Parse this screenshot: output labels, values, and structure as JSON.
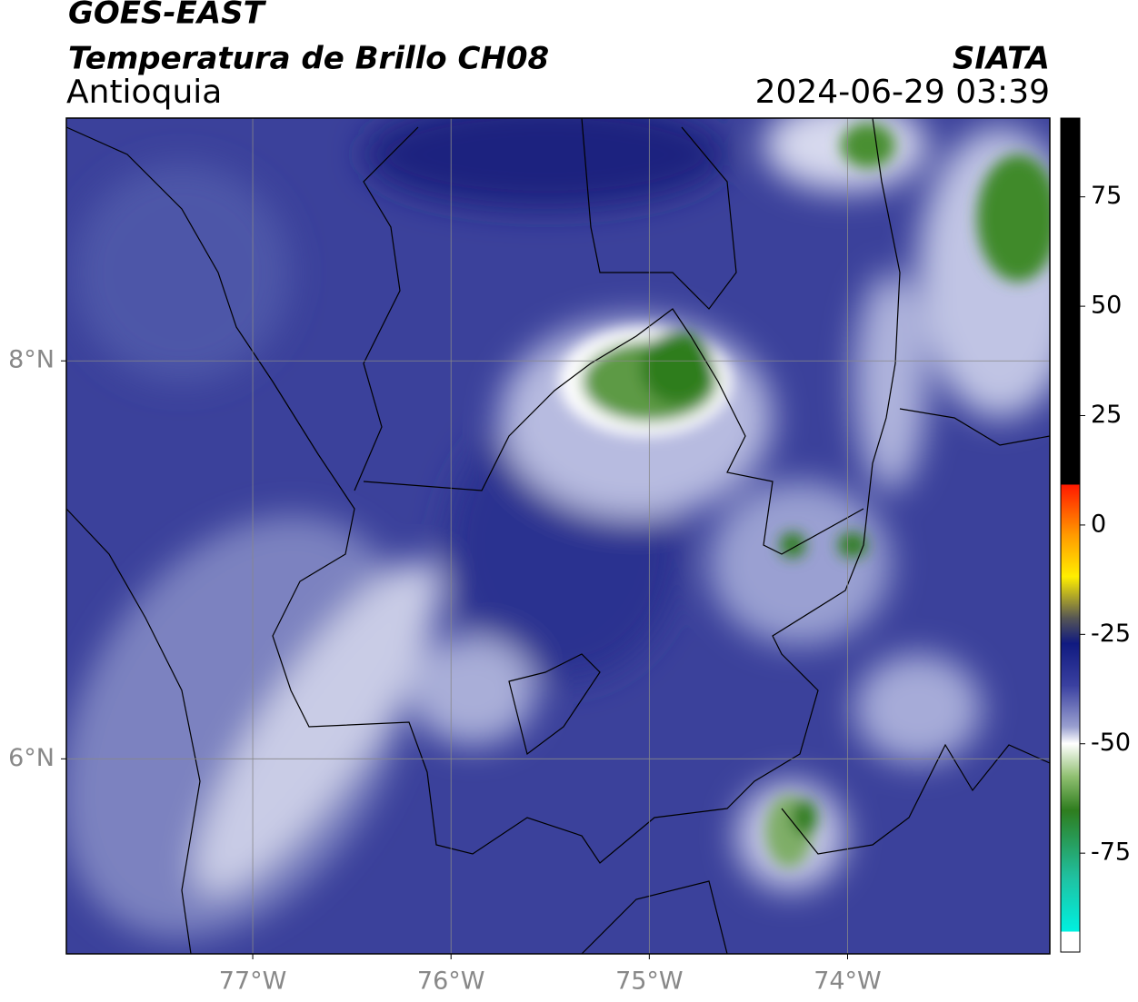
{
  "header": {
    "title": "GOES-EAST",
    "subtitle": "Temperatura de Brillo CH08",
    "region": "Antioquia",
    "source": "SIATA",
    "datetime": "2024-06-29 03:39"
  },
  "map": {
    "lonlim": [
      -77.94,
      -72.98
    ],
    "latlim": [
      5.02,
      9.22
    ],
    "lonticks": [
      {
        "value": -77,
        "label": "77°W"
      },
      {
        "value": -76,
        "label": "76°W"
      },
      {
        "value": -75,
        "label": "75°W"
      },
      {
        "value": -74,
        "label": "74°W"
      }
    ],
    "latticks": [
      {
        "value": 8,
        "label": "8°N"
      },
      {
        "value": 6,
        "label": "6°N"
      }
    ],
    "grid": true
  },
  "colorbar": {
    "lim": [
      -97.6,
      93
    ],
    "ticks": [
      75,
      50,
      25,
      0,
      -25,
      -50,
      -75
    ]
  }
}
